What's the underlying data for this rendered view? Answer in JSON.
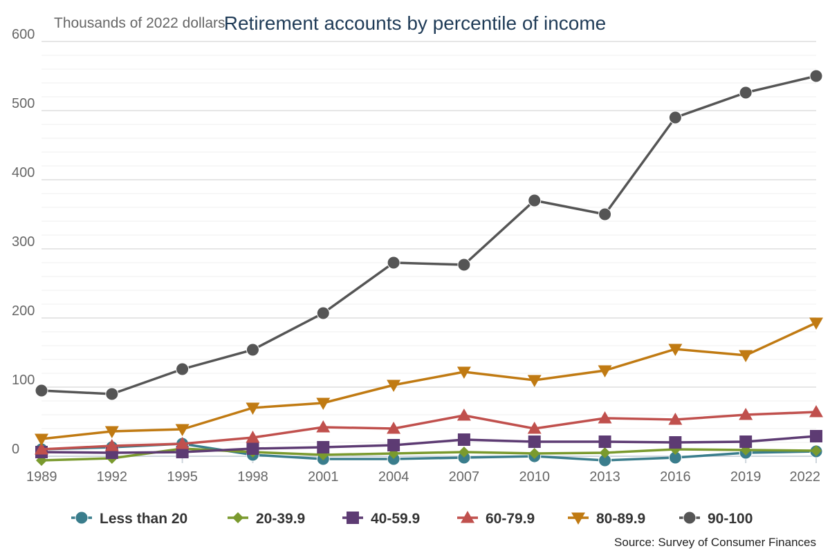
{
  "chart_data": {
    "type": "line",
    "title": "Retirement accounts by percentile of income",
    "ylabel": "Thousands of 2022 dollars",
    "xlabel": "",
    "x": [
      1989,
      1992,
      1995,
      1998,
      2001,
      2004,
      2007,
      2010,
      2013,
      2016,
      2019,
      2022
    ],
    "x_tick_labels": [
      "1989",
      "1992",
      "1995",
      "1998",
      "2001",
      "2004",
      "2007",
      "2010",
      "2013",
      "2016",
      "2019",
      "2022"
    ],
    "ylim": [
      0,
      600
    ],
    "y_ticks": [
      0,
      100,
      200,
      300,
      400,
      500,
      600
    ],
    "y_tick_labels": [
      "0",
      "100",
      "200",
      "300",
      "400",
      "500",
      "600"
    ],
    "grid": true,
    "legend_position": "bottom",
    "source": "Source: Survey of Consumer Finances",
    "series": [
      {
        "name": "Less than 20",
        "color": "#3a7d8c",
        "marker": "circle",
        "values": [
          10,
          13,
          18,
          2,
          -4,
          -4,
          -2,
          0,
          -6,
          -2,
          5,
          7
        ]
      },
      {
        "name": "20-39.9",
        "color": "#7a9a2e",
        "marker": "diamond",
        "values": [
          -6,
          -3,
          11,
          6,
          2,
          4,
          6,
          4,
          5,
          10,
          9,
          8
        ]
      },
      {
        "name": "40-59.9",
        "color": "#5d3b73",
        "marker": "square",
        "values": [
          6,
          5,
          6,
          11,
          13,
          16,
          24,
          21,
          21,
          20,
          21,
          29
        ]
      },
      {
        "name": "60-79.9",
        "color": "#c0504d",
        "marker": "triangle-up",
        "values": [
          10,
          15,
          18,
          27,
          42,
          40,
          59,
          40,
          55,
          53,
          60,
          64
        ]
      },
      {
        "name": "80-89.9",
        "color": "#c07a12",
        "marker": "triangle-down",
        "values": [
          25,
          36,
          39,
          70,
          77,
          103,
          122,
          110,
          124,
          155,
          146,
          193
        ]
      },
      {
        "name": "90-100",
        "color": "#555555",
        "marker": "circle",
        "values": [
          95,
          90,
          126,
          154,
          207,
          280,
          277,
          370,
          350,
          490,
          526,
          550
        ]
      }
    ]
  }
}
